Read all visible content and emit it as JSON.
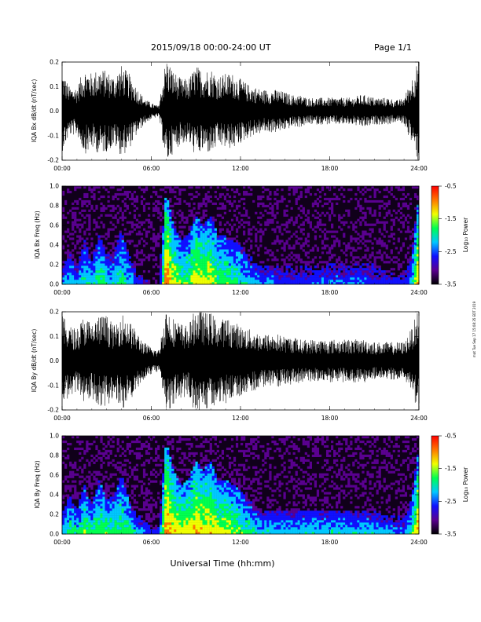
{
  "header": {
    "date_range": "2015/09/18  00:00-24:00 UT",
    "page": "Page 1/1"
  },
  "footer": {
    "xlabel": "Universal Time (hh:mm)",
    "timestamp": "mat Tue Sep 17 15:08:35 EDT 2019"
  },
  "colors": {
    "waveform": "#000000",
    "spectrogram_background": "#10001a",
    "colormap": [
      "#000000",
      "#5a0090",
      "#1010ff",
      "#00c8ff",
      "#00ff50",
      "#f0ff00",
      "#ff7800",
      "#ff0000"
    ]
  },
  "chart_data": [
    {
      "type": "line",
      "subtype": "waveform",
      "ylabel": "IQA Bx dB/dt (nT/sec)",
      "xlim": [
        0,
        24
      ],
      "ylim": [
        -0.2,
        0.2
      ],
      "xticks": [
        "00:00",
        "06:00",
        "12:00",
        "18:00",
        "24:00"
      ],
      "yticks": [
        "-0.2",
        "-0.1",
        "0.0",
        "0.1",
        "0.2"
      ],
      "x_hours": [
        0,
        0.5,
        1,
        1.5,
        2,
        2.5,
        3,
        3.5,
        4,
        4.5,
        5,
        5.5,
        6,
        6.5,
        7,
        7.5,
        8,
        8.5,
        9,
        9.5,
        10,
        10.5,
        11,
        11.5,
        12,
        12.5,
        13,
        13.5,
        14,
        14.5,
        15,
        15.5,
        16,
        16.5,
        17,
        17.5,
        18,
        18.5,
        19,
        19.5,
        20,
        20.5,
        21,
        21.5,
        22,
        22.5,
        23,
        23.5,
        24
      ],
      "amplitude": [
        0.15,
        0.09,
        0.09,
        0.16,
        0.14,
        0.16,
        0.15,
        0.13,
        0.17,
        0.14,
        0.09,
        0.05,
        0.03,
        0.02,
        0.2,
        0.15,
        0.12,
        0.12,
        0.17,
        0.15,
        0.16,
        0.13,
        0.14,
        0.14,
        0.12,
        0.1,
        0.09,
        0.08,
        0.08,
        0.08,
        0.07,
        0.06,
        0.06,
        0.05,
        0.05,
        0.05,
        0.05,
        0.05,
        0.05,
        0.05,
        0.06,
        0.06,
        0.05,
        0.05,
        0.05,
        0.04,
        0.05,
        0.12,
        0.2
      ]
    },
    {
      "type": "heatmap",
      "subtype": "spectrogram",
      "ylabel": "IQA Bx Freq (Hz)",
      "xlim": [
        0,
        24
      ],
      "ylim": [
        0.0,
        1.0
      ],
      "xticks": [
        "00:00",
        "06:00",
        "12:00",
        "18:00",
        "24:00"
      ],
      "yticks": [
        "0.0",
        "0.2",
        "0.4",
        "0.6",
        "0.8",
        "1.0"
      ],
      "colorbar": {
        "label": "Log₁₀ Power",
        "range": [
          -3.5,
          -0.5
        ],
        "ticks": [
          "-0.5",
          "-1.5",
          "-2.5",
          "-3.5"
        ]
      },
      "x_hours": [
        0,
        0.5,
        1,
        1.5,
        2,
        2.5,
        3,
        3.5,
        4,
        4.5,
        5,
        5.5,
        6,
        6.5,
        7,
        7.5,
        8,
        8.5,
        9,
        9.5,
        10,
        10.5,
        11,
        11.5,
        12,
        12.5,
        13,
        13.5,
        14,
        14.5,
        15,
        15.5,
        16,
        16.5,
        17,
        17.5,
        18,
        18.5,
        19,
        19.5,
        20,
        20.5,
        21,
        21.5,
        22,
        22.5,
        23,
        23.5,
        24
      ],
      "activity": [
        0.35,
        0.45,
        0.4,
        0.5,
        0.45,
        0.55,
        0.5,
        0.45,
        0.55,
        0.45,
        0.3,
        0.2,
        0.15,
        0.15,
        0.9,
        0.7,
        0.6,
        0.6,
        0.75,
        0.7,
        0.7,
        0.6,
        0.6,
        0.55,
        0.5,
        0.45,
        0.4,
        0.35,
        0.4,
        0.35,
        0.35,
        0.3,
        0.3,
        0.3,
        0.35,
        0.35,
        0.35,
        0.35,
        0.35,
        0.35,
        0.35,
        0.35,
        0.3,
        0.3,
        0.3,
        0.25,
        0.25,
        0.4,
        0.85
      ],
      "max_freq_hz": [
        0.15,
        0.35,
        0.2,
        0.45,
        0.25,
        0.5,
        0.3,
        0.35,
        0.55,
        0.3,
        0.15,
        0.1,
        0.08,
        0.08,
        0.95,
        0.6,
        0.45,
        0.5,
        0.7,
        0.6,
        0.7,
        0.5,
        0.5,
        0.45,
        0.4,
        0.3,
        0.25,
        0.2,
        0.22,
        0.2,
        0.2,
        0.18,
        0.18,
        0.18,
        0.22,
        0.22,
        0.22,
        0.22,
        0.22,
        0.22,
        0.22,
        0.22,
        0.2,
        0.2,
        0.2,
        0.15,
        0.15,
        0.3,
        0.9
      ]
    },
    {
      "type": "line",
      "subtype": "waveform",
      "ylabel": "IQA By dB/dt (nT/sec)",
      "xlim": [
        0,
        24
      ],
      "ylim": [
        -0.2,
        0.2
      ],
      "xticks": [
        "00:00",
        "06:00",
        "12:00",
        "18:00",
        "24:00"
      ],
      "yticks": [
        "-0.2",
        "-0.1",
        "0.0",
        "0.1",
        "0.2"
      ],
      "x_hours": [
        0,
        0.5,
        1,
        1.5,
        2,
        2.5,
        3,
        3.5,
        4,
        4.5,
        5,
        5.5,
        6,
        6.5,
        7,
        7.5,
        8,
        8.5,
        9,
        9.5,
        10,
        10.5,
        11,
        11.5,
        12,
        12.5,
        13,
        13.5,
        14,
        14.5,
        15,
        15.5,
        16,
        16.5,
        17,
        17.5,
        18,
        18.5,
        19,
        19.5,
        20,
        20.5,
        21,
        21.5,
        22,
        22.5,
        23,
        23.5,
        24
      ],
      "amplitude": [
        0.17,
        0.13,
        0.12,
        0.17,
        0.14,
        0.17,
        0.17,
        0.13,
        0.18,
        0.15,
        0.11,
        0.07,
        0.05,
        0.04,
        0.2,
        0.16,
        0.14,
        0.13,
        0.2,
        0.18,
        0.18,
        0.15,
        0.16,
        0.15,
        0.13,
        0.12,
        0.11,
        0.1,
        0.1,
        0.1,
        0.09,
        0.09,
        0.08,
        0.08,
        0.08,
        0.08,
        0.08,
        0.08,
        0.08,
        0.08,
        0.08,
        0.08,
        0.07,
        0.07,
        0.07,
        0.07,
        0.07,
        0.12,
        0.2
      ]
    },
    {
      "type": "heatmap",
      "subtype": "spectrogram",
      "ylabel": "IQA By Freq (Hz)",
      "xlim": [
        0,
        24
      ],
      "ylim": [
        0.0,
        1.0
      ],
      "xticks": [
        "00:00",
        "06:00",
        "12:00",
        "18:00",
        "24:00"
      ],
      "yticks": [
        "0.0",
        "0.2",
        "0.4",
        "0.6",
        "0.8",
        "1.0"
      ],
      "colorbar": {
        "label": "Log₁₀ Power",
        "range": [
          -3.5,
          -0.5
        ],
        "ticks": [
          "-0.5",
          "-1.5",
          "-2.5",
          "-3.5"
        ]
      },
      "x_hours": [
        0,
        0.5,
        1,
        1.5,
        2,
        2.5,
        3,
        3.5,
        4,
        4.5,
        5,
        5.5,
        6,
        6.5,
        7,
        7.5,
        8,
        8.5,
        9,
        9.5,
        10,
        10.5,
        11,
        11.5,
        12,
        12.5,
        13,
        13.5,
        14,
        14.5,
        15,
        15.5,
        16,
        16.5,
        17,
        17.5,
        18,
        18.5,
        19,
        19.5,
        20,
        20.5,
        21,
        21.5,
        22,
        22.5,
        23,
        23.5,
        24
      ],
      "activity": [
        0.45,
        0.55,
        0.5,
        0.6,
        0.55,
        0.6,
        0.6,
        0.55,
        0.6,
        0.55,
        0.45,
        0.35,
        0.3,
        0.25,
        0.9,
        0.75,
        0.7,
        0.7,
        0.8,
        0.75,
        0.75,
        0.7,
        0.7,
        0.65,
        0.6,
        0.55,
        0.5,
        0.45,
        0.5,
        0.45,
        0.45,
        0.45,
        0.45,
        0.45,
        0.45,
        0.45,
        0.45,
        0.45,
        0.45,
        0.45,
        0.45,
        0.45,
        0.45,
        0.4,
        0.4,
        0.35,
        0.35,
        0.5,
        0.85
      ],
      "max_freq_hz": [
        0.2,
        0.4,
        0.25,
        0.5,
        0.3,
        0.55,
        0.35,
        0.4,
        0.6,
        0.35,
        0.2,
        0.15,
        0.12,
        0.1,
        0.95,
        0.65,
        0.5,
        0.55,
        0.75,
        0.65,
        0.75,
        0.55,
        0.55,
        0.5,
        0.45,
        0.35,
        0.3,
        0.25,
        0.25,
        0.25,
        0.25,
        0.25,
        0.25,
        0.25,
        0.25,
        0.25,
        0.25,
        0.25,
        0.25,
        0.25,
        0.25,
        0.25,
        0.25,
        0.2,
        0.2,
        0.18,
        0.18,
        0.35,
        0.9
      ]
    }
  ]
}
